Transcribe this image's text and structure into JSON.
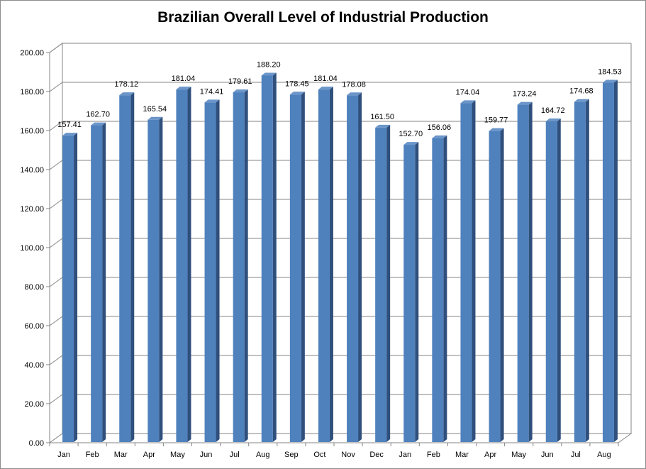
{
  "chart_data": {
    "type": "bar",
    "title": "Brazilian Overall Level of Industrial Production",
    "xlabel": "",
    "ylabel": "",
    "ylim": [
      0,
      200
    ],
    "yticks": [
      "0.00",
      "20.00",
      "40.00",
      "60.00",
      "80.00",
      "100.00",
      "120.00",
      "140.00",
      "160.00",
      "180.00",
      "200.00"
    ],
    "grid": true,
    "legend": "none",
    "categories": [
      "Jan",
      "Feb",
      "Mar",
      "Apr",
      "May",
      "Jun",
      "Jul",
      "Aug",
      "Sep",
      "Oct",
      "Nov",
      "Dec",
      "Jan",
      "Feb",
      "Mar",
      "Apr",
      "May",
      "Jun",
      "Jul",
      "Aug"
    ],
    "values": [
      157.41,
      162.7,
      178.12,
      165.54,
      181.04,
      174.41,
      179.61,
      188.2,
      178.45,
      181.04,
      178.08,
      161.5,
      152.7,
      156.06,
      174.04,
      159.77,
      173.24,
      164.72,
      174.68,
      184.53
    ],
    "value_labels": [
      "157.41",
      "162.70",
      "178.12",
      "165.54",
      "181.04",
      "174.41",
      "179.61",
      "188.20",
      "178.45",
      "181.04",
      "178.08",
      "161.50",
      "152.70",
      "156.06",
      "174.04",
      "159.77",
      "173.24",
      "164.72",
      "174.68",
      "184.53"
    ],
    "colors": {
      "bar_front": "#4f81bd",
      "bar_side": "#2f4f7c",
      "bar_top": "#6c96c9",
      "grid": "#868686",
      "axis": "#868686",
      "wall": "#ffffff"
    }
  }
}
